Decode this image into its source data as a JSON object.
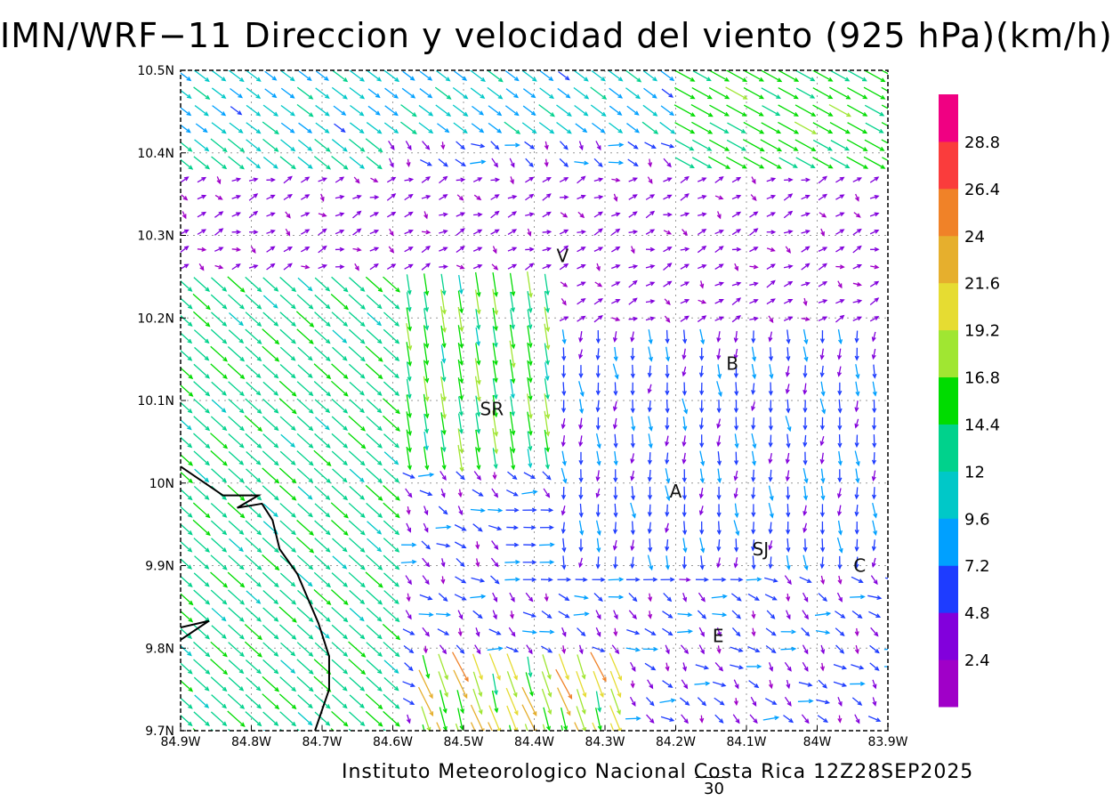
{
  "title": "IMN/WRF−11 Direccion y velocidad del viento (925 hPa)(km/h)",
  "footer": "Instituto Meteorologico Nacional Costa Rica 12Z28SEP2025",
  "scale_label": "30",
  "map": {
    "lon_range": [
      -84.9,
      -83.9
    ],
    "lat_range": [
      9.7,
      10.5
    ],
    "x_ticks": [
      {
        "value": -84.9,
        "label": "84.9W"
      },
      {
        "value": -84.8,
        "label": "84.8W"
      },
      {
        "value": -84.7,
        "label": "84.7W"
      },
      {
        "value": -84.6,
        "label": "84.6W"
      },
      {
        "value": -84.5,
        "label": "84.5W"
      },
      {
        "value": -84.4,
        "label": "84.4W"
      },
      {
        "value": -84.3,
        "label": "84.3W"
      },
      {
        "value": -84.2,
        "label": "84.2W"
      },
      {
        "value": -84.1,
        "label": "84.1W"
      },
      {
        "value": -84.0,
        "label": "84W"
      },
      {
        "value": -83.9,
        "label": "83.9W"
      }
    ],
    "y_ticks": [
      {
        "value": 9.7,
        "label": "9.7N"
      },
      {
        "value": 9.8,
        "label": "9.8N"
      },
      {
        "value": 9.9,
        "label": "9.9N"
      },
      {
        "value": 10.0,
        "label": "10N"
      },
      {
        "value": 10.1,
        "label": "10.1N"
      },
      {
        "value": 10.2,
        "label": "10.2N"
      },
      {
        "value": 10.3,
        "label": "10.3N"
      },
      {
        "value": 10.4,
        "label": "10.4N"
      },
      {
        "value": 10.5,
        "label": "10.5N"
      }
    ],
    "grid": true,
    "places": [
      {
        "label": "V",
        "lon": -84.36,
        "lat": 10.275
      },
      {
        "label": "B",
        "lon": -84.12,
        "lat": 10.145
      },
      {
        "label": "SR",
        "lon": -84.46,
        "lat": 10.09
      },
      {
        "label": "A",
        "lon": -84.2,
        "lat": 9.99
      },
      {
        "label": "SJ",
        "lon": -84.08,
        "lat": 9.92
      },
      {
        "label": "C",
        "lon": -83.94,
        "lat": 9.9
      },
      {
        "label": "E",
        "lon": -84.14,
        "lat": 9.815
      }
    ],
    "coastline": [
      [
        -84.9,
        10.02
      ],
      [
        -84.84,
        9.985
      ],
      [
        -84.79,
        9.985
      ],
      [
        -84.82,
        9.97
      ],
      [
        -84.785,
        9.975
      ],
      [
        -84.77,
        9.955
      ],
      [
        -84.76,
        9.92
      ],
      [
        -84.735,
        9.89
      ],
      [
        -84.72,
        9.86
      ],
      [
        -84.705,
        9.83
      ],
      [
        -84.69,
        9.79
      ],
      [
        -84.69,
        9.75
      ],
      [
        -84.71,
        9.7
      ]
    ],
    "coastline2": [
      [
        -84.9,
        9.825
      ],
      [
        -84.86,
        9.833
      ],
      [
        -84.9,
        9.81
      ]
    ]
  },
  "colorbar": {
    "levels": [
      "2.4",
      "4.8",
      "7.2",
      "9.6",
      "12",
      "14.4",
      "16.8",
      "19.2",
      "21.6",
      "24",
      "26.4",
      "28.8"
    ],
    "colors": [
      "#a000c8",
      "#8200dc",
      "#1e3cff",
      "#00a0ff",
      "#00c8c8",
      "#00d28c",
      "#00dc00",
      "#a0e632",
      "#e6dc32",
      "#e6af2d",
      "#f08228",
      "#fa3c3c",
      "#f00082"
    ]
  }
}
